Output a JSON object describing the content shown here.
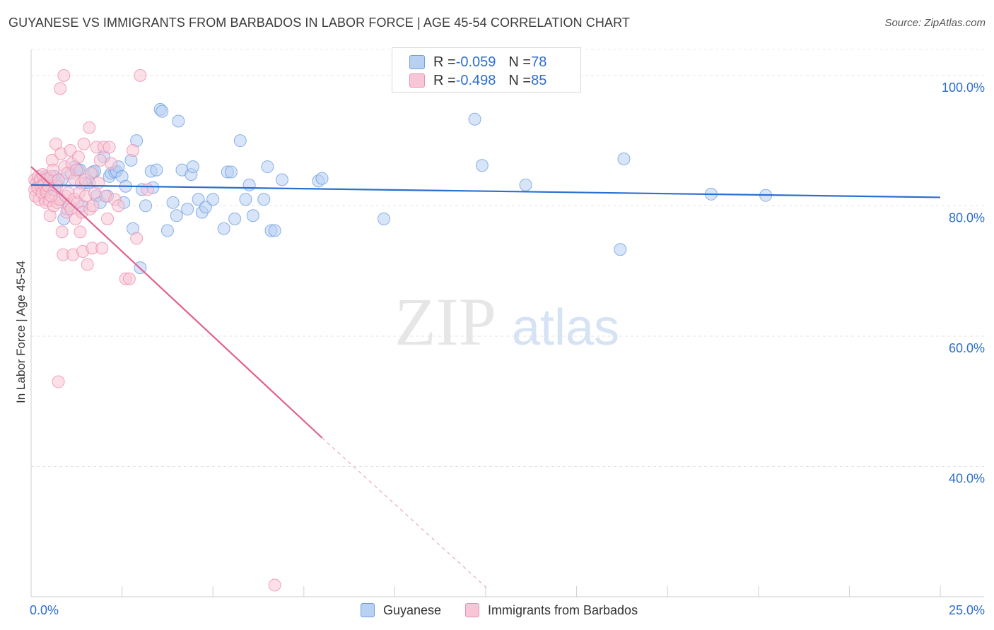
{
  "header": {
    "title": "GUYANESE VS IMMIGRANTS FROM BARBADOS IN LABOR FORCE | AGE 45-54 CORRELATION CHART",
    "source": "Source: ZipAtlas.com"
  },
  "watermark": {
    "zip": "ZIP",
    "atlas": "atlas"
  },
  "legend": {
    "items": [
      {
        "r_label": "R = ",
        "r_value": "-0.059",
        "n_label": "N = ",
        "n_value": "78",
        "fill": "#b8d0f2",
        "stroke": "#6f9fe0"
      },
      {
        "r_label": "R = ",
        "r_value": "-0.498",
        "n_label": "N = ",
        "n_value": "85",
        "fill": "#f8c6d6",
        "stroke": "#ec8fae"
      }
    ]
  },
  "bottom_legend": {
    "series1": "Guyanese",
    "series2": "Immigrants from Barbados"
  },
  "chart_data": {
    "type": "scatter",
    "title": "GUYANESE VS IMMIGRANTS FROM BARBADOS IN LABOR FORCE | AGE 45-54 CORRELATION CHART",
    "xlabel": "",
    "ylabel": "In Labor Force | Age 45-54",
    "xlim": [
      0,
      25
    ],
    "ylim": [
      20,
      104
    ],
    "x_tick_labels": [
      "0.0%",
      "25.0%"
    ],
    "y_ticks": [
      40,
      60,
      80,
      100
    ],
    "y_tick_labels": [
      "40.0%",
      "60.0%",
      "80.0%",
      "100.0%"
    ],
    "grid": true,
    "series": [
      {
        "name": "Guyanese",
        "color": "#6f9fe0",
        "fill": "#b8d0f2",
        "line_color": "#2b6fd0",
        "R": -0.059,
        "N": 78,
        "trend": {
          "x": [
            0,
            25
          ],
          "y": [
            83.2,
            81.3
          ]
        },
        "points": [
          [
            0.2,
            83.5
          ],
          [
            0.3,
            83.0
          ],
          [
            0.35,
            84.0
          ],
          [
            0.4,
            84.5
          ],
          [
            0.45,
            82.5
          ],
          [
            0.5,
            84.2
          ],
          [
            0.6,
            82.5
          ],
          [
            0.65,
            84.5
          ],
          [
            0.7,
            83.5
          ],
          [
            0.8,
            81.0
          ],
          [
            0.85,
            84.0
          ],
          [
            0.9,
            78.0
          ],
          [
            1.0,
            79.5
          ],
          [
            1.1,
            85.0
          ],
          [
            1.2,
            86.0
          ],
          [
            1.3,
            85.5
          ],
          [
            1.35,
            85.5
          ],
          [
            1.4,
            80.0
          ],
          [
            1.5,
            83.5
          ],
          [
            1.6,
            83.5
          ],
          [
            1.7,
            85.2
          ],
          [
            1.75,
            85.3
          ],
          [
            1.8,
            81.5
          ],
          [
            1.9,
            80.5
          ],
          [
            2.0,
            87.5
          ],
          [
            2.1,
            81.5
          ],
          [
            2.15,
            84.5
          ],
          [
            2.2,
            85.0
          ],
          [
            2.3,
            85.2
          ],
          [
            2.35,
            85.3
          ],
          [
            2.4,
            86.0
          ],
          [
            2.5,
            84.5
          ],
          [
            2.55,
            80.5
          ],
          [
            2.6,
            83.0
          ],
          [
            2.75,
            87.0
          ],
          [
            2.8,
            76.5
          ],
          [
            2.9,
            90.0
          ],
          [
            3.0,
            70.5
          ],
          [
            3.05,
            82.5
          ],
          [
            3.15,
            80.0
          ],
          [
            3.3,
            85.3
          ],
          [
            3.35,
            82.8
          ],
          [
            3.45,
            85.5
          ],
          [
            3.55,
            94.8
          ],
          [
            3.6,
            94.5
          ],
          [
            3.75,
            76.2
          ],
          [
            3.9,
            80.5
          ],
          [
            4.0,
            78.5
          ],
          [
            4.05,
            93.0
          ],
          [
            4.15,
            85.5
          ],
          [
            4.3,
            79.5
          ],
          [
            4.4,
            84.8
          ],
          [
            4.45,
            86.0
          ],
          [
            4.6,
            81.0
          ],
          [
            4.7,
            79.0
          ],
          [
            4.8,
            79.8
          ],
          [
            5.0,
            81.0
          ],
          [
            5.3,
            76.5
          ],
          [
            5.4,
            85.2
          ],
          [
            5.5,
            85.2
          ],
          [
            5.6,
            78.0
          ],
          [
            5.75,
            90.0
          ],
          [
            5.9,
            81.0
          ],
          [
            6.0,
            83.2
          ],
          [
            6.1,
            78.5
          ],
          [
            6.4,
            81.0
          ],
          [
            6.5,
            86.0
          ],
          [
            6.6,
            76.2
          ],
          [
            6.7,
            76.2
          ],
          [
            6.9,
            84.0
          ],
          [
            7.9,
            83.8
          ],
          [
            8.0,
            84.2
          ],
          [
            9.7,
            78.0
          ],
          [
            12.2,
            93.3
          ],
          [
            12.4,
            86.2
          ],
          [
            13.6,
            83.2
          ],
          [
            16.2,
            73.3
          ],
          [
            16.3,
            87.2
          ],
          [
            18.7,
            81.8
          ],
          [
            20.2,
            81.6
          ]
        ]
      },
      {
        "name": "Immigrants from Barbados",
        "color": "#ec8fae",
        "fill": "#f8c6d6",
        "line_color": "#e0608f",
        "R": -0.498,
        "N": 85,
        "trend": {
          "x": [
            0,
            8.0
          ],
          "y": [
            86.0,
            44.4
          ]
        },
        "trend_dashed": {
          "x": [
            8.0,
            12.6
          ],
          "y": [
            44.4,
            21.0
          ]
        },
        "points": [
          [
            0.1,
            84.0
          ],
          [
            0.1,
            82.5
          ],
          [
            0.12,
            81.5
          ],
          [
            0.15,
            83.5
          ],
          [
            0.18,
            82.8
          ],
          [
            0.2,
            84.5
          ],
          [
            0.22,
            81.0
          ],
          [
            0.25,
            84.0
          ],
          [
            0.28,
            83.0
          ],
          [
            0.3,
            82.0
          ],
          [
            0.32,
            84.8
          ],
          [
            0.35,
            83.2
          ],
          [
            0.38,
            81.0
          ],
          [
            0.4,
            80.5
          ],
          [
            0.42,
            82.2
          ],
          [
            0.45,
            84.2
          ],
          [
            0.48,
            83.0
          ],
          [
            0.5,
            80.8
          ],
          [
            0.52,
            78.5
          ],
          [
            0.55,
            84.5
          ],
          [
            0.58,
            87.0
          ],
          [
            0.6,
            85.5
          ],
          [
            0.62,
            80.0
          ],
          [
            0.65,
            82.5
          ],
          [
            0.68,
            89.5
          ],
          [
            0.7,
            83.0
          ],
          [
            0.72,
            80.5
          ],
          [
            0.75,
            84.0
          ],
          [
            0.78,
            81.0
          ],
          [
            0.8,
            98.0
          ],
          [
            0.82,
            88.0
          ],
          [
            0.85,
            76.0
          ],
          [
            0.88,
            72.5
          ],
          [
            0.9,
            100.0
          ],
          [
            0.92,
            86.0
          ],
          [
            0.95,
            81.5
          ],
          [
            0.98,
            79.0
          ],
          [
            1.0,
            85.0
          ],
          [
            1.02,
            82.0
          ],
          [
            1.05,
            80.0
          ],
          [
            1.08,
            88.5
          ],
          [
            1.1,
            79.5
          ],
          [
            1.12,
            86.5
          ],
          [
            1.15,
            72.5
          ],
          [
            1.18,
            81.0
          ],
          [
            1.2,
            84.0
          ],
          [
            1.22,
            78.0
          ],
          [
            1.25,
            85.5
          ],
          [
            1.28,
            80.5
          ],
          [
            1.3,
            87.5
          ],
          [
            1.32,
            82.0
          ],
          [
            1.35,
            76.0
          ],
          [
            1.38,
            83.5
          ],
          [
            1.4,
            79.0
          ],
          [
            1.42,
            73.0
          ],
          [
            1.45,
            89.5
          ],
          [
            1.48,
            84.0
          ],
          [
            1.5,
            81.5
          ],
          [
            1.55,
            71.0
          ],
          [
            1.6,
            92.0
          ],
          [
            1.62,
            79.5
          ],
          [
            1.65,
            85.0
          ],
          [
            1.68,
            73.5
          ],
          [
            1.7,
            80.0
          ],
          [
            1.75,
            82.0
          ],
          [
            1.8,
            89.0
          ],
          [
            1.85,
            83.5
          ],
          [
            1.9,
            87.0
          ],
          [
            1.95,
            73.5
          ],
          [
            2.0,
            89.0
          ],
          [
            2.05,
            81.5
          ],
          [
            2.1,
            78.0
          ],
          [
            2.15,
            89.0
          ],
          [
            2.2,
            86.5
          ],
          [
            2.3,
            81.0
          ],
          [
            2.4,
            80.0
          ],
          [
            2.6,
            68.8
          ],
          [
            2.7,
            68.8
          ],
          [
            2.8,
            88.5
          ],
          [
            2.9,
            75.0
          ],
          [
            3.0,
            100.0
          ],
          [
            3.2,
            82.5
          ],
          [
            0.75,
            53.0
          ],
          [
            6.7,
            21.8
          ],
          [
            0.55,
            81.5
          ]
        ]
      }
    ]
  }
}
